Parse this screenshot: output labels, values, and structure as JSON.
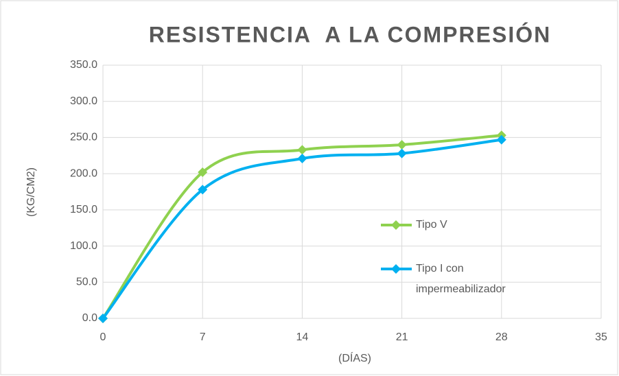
{
  "chart_data": {
    "type": "line",
    "title": "RESISTENCIA  A LA COMPRESIÓN",
    "x_label": "(DÍAS)",
    "y_label": "(KG/CM2)",
    "x": [
      0,
      7,
      14,
      21,
      28
    ],
    "series": [
      {
        "name": "Tipo V",
        "color": "#8fd14f",
        "values": [
          0,
          202,
          233,
          240,
          253
        ]
      },
      {
        "name": "Tipo I con impermeabilizador",
        "color": "#00b0f0",
        "values": [
          0,
          178,
          221,
          228,
          247
        ]
      }
    ],
    "xlim": [
      0,
      35
    ],
    "xticks": [
      0,
      7,
      14,
      21,
      28,
      35
    ],
    "ylim": [
      0,
      350
    ],
    "yticks": [
      {
        "value": 0,
        "label": "0.0"
      },
      {
        "value": 50,
        "label": "50.0"
      },
      {
        "value": 100,
        "label": "100.0"
      },
      {
        "value": 150,
        "label": "150.0"
      },
      {
        "value": 200,
        "label": "200.0"
      },
      {
        "value": 250,
        "label": "250.0"
      },
      {
        "value": 300,
        "label": "300.0"
      },
      {
        "value": 350,
        "label": "350.0"
      }
    ],
    "grid": true,
    "smooth": true
  }
}
